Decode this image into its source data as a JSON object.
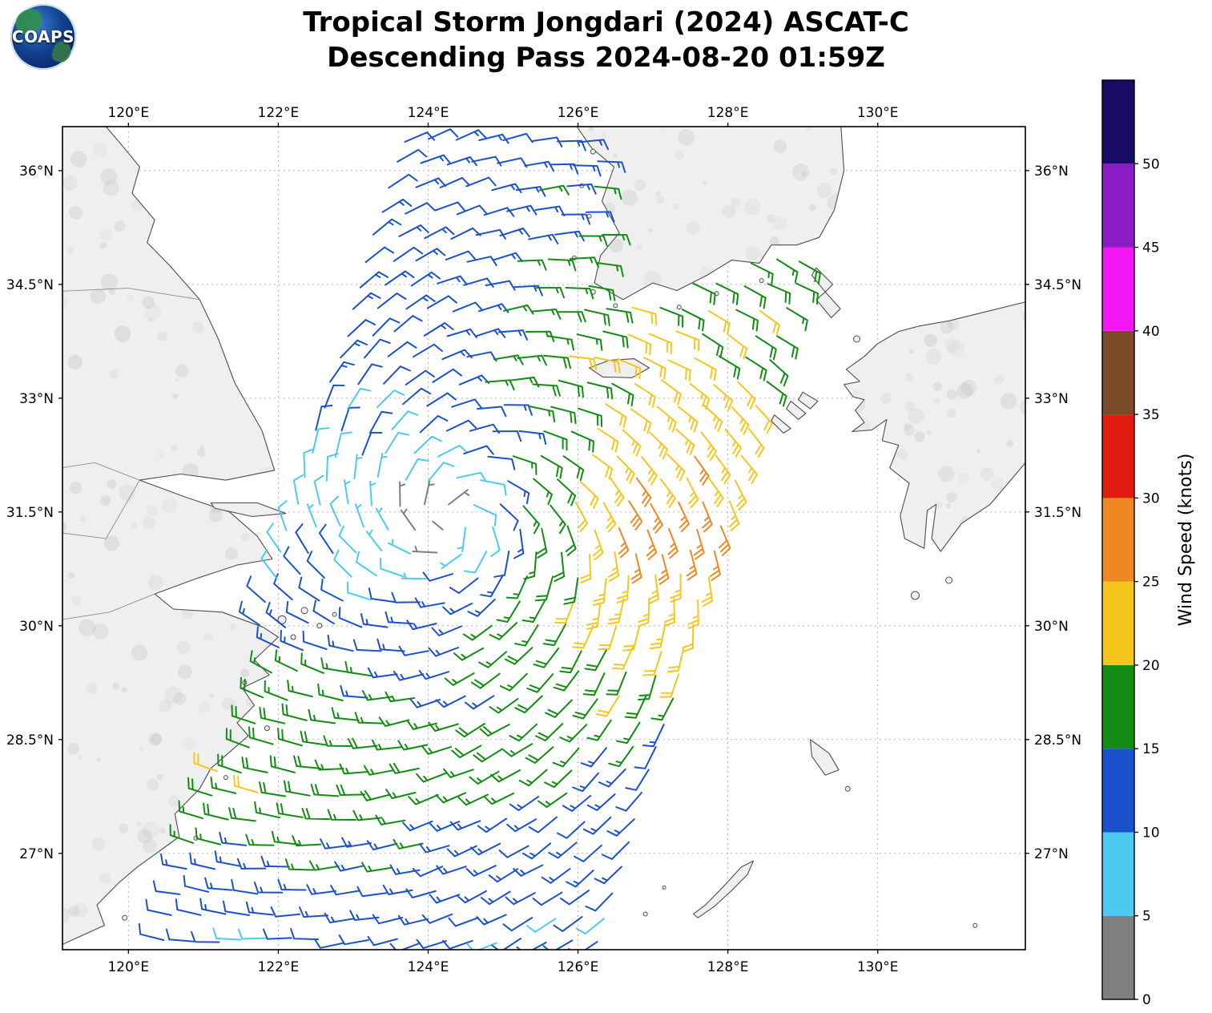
{
  "header": {
    "title_line1": "Tropical Storm Jongdari (2024) ASCAT-C",
    "title_line2": "Descending Pass 2024-08-20 01:59Z",
    "logo_text": "COAPS"
  },
  "chart_data": {
    "type": "wind_barb_map",
    "storm_name": "Jongdari",
    "year": "2024",
    "satellite": "ASCAT-C",
    "pass_type": "Descending",
    "pass_datetime_utc": "2024-08-20 01:59Z",
    "axes": {
      "lon_range": [
        119.12,
        131.97
      ],
      "lat_range": [
        25.73,
        36.58
      ],
      "lon_ticks": [
        {
          "value": 120,
          "label": "120°E"
        },
        {
          "value": 122,
          "label": "122°E"
        },
        {
          "value": 124,
          "label": "124°E"
        },
        {
          "value": 126,
          "label": "126°E"
        },
        {
          "value": 128,
          "label": "128°E"
        },
        {
          "value": 130,
          "label": "130°E"
        }
      ],
      "lat_ticks": [
        {
          "value": 36,
          "label": "36°N"
        },
        {
          "value": 34.5,
          "label": "34.5°N"
        },
        {
          "value": 33,
          "label": "33°N"
        },
        {
          "value": 31.5,
          "label": "31.5°N"
        },
        {
          "value": 30,
          "label": "30°N"
        },
        {
          "value": 28.5,
          "label": "28.5°N"
        },
        {
          "value": 27,
          "label": "27°N"
        }
      ],
      "grid": "dotted"
    },
    "colorbar": {
      "label": "Wind Speed (knots)",
      "tick_values": [
        0,
        5,
        10,
        15,
        20,
        25,
        30,
        35,
        40,
        45,
        50
      ],
      "segments": [
        {
          "min": 0,
          "max": 5,
          "color": "#7f7f7f"
        },
        {
          "min": 5,
          "max": 10,
          "color": "#4ccaf0"
        },
        {
          "min": 10,
          "max": 15,
          "color": "#1c51cd"
        },
        {
          "min": 15,
          "max": 20,
          "color": "#128c12"
        },
        {
          "min": 20,
          "max": 25,
          "color": "#f5c71c"
        },
        {
          "min": 25,
          "max": 30,
          "color": "#ef8722"
        },
        {
          "min": 30,
          "max": 35,
          "color": "#e01b10"
        },
        {
          "min": 35,
          "max": 40,
          "color": "#7b4a28"
        },
        {
          "min": 40,
          "max": 45,
          "color": "#f318f3"
        },
        {
          "min": 45,
          "max": 50,
          "color": "#8a1cc4"
        },
        {
          "min": 50,
          "max": 55,
          "color": "#170b63"
        }
      ]
    },
    "storm_center": {
      "lon": 124.35,
      "lat": 31.35
    },
    "swath": {
      "left_lon_at_26n": 120.55,
      "lon_shift_per_deg_lat": 0.3,
      "width_deg": 6.0
    },
    "barb_spacing_deg": {
      "lon": 0.34,
      "lat": 0.32
    },
    "circulation": "cyclonic-counterclockwise",
    "inflow_angle_deg": 20,
    "wind_field_polar": {
      "angles_deg": [
        0,
        45,
        90,
        135,
        180,
        225,
        270,
        315
      ],
      "radii_deg": [
        0,
        1,
        2,
        3,
        4,
        5,
        6
      ],
      "speeds_kt": [
        [
          2,
          18,
          28,
          27,
          22,
          18,
          15
        ],
        [
          2,
          14,
          20,
          22,
          19,
          17,
          15
        ],
        [
          2,
          11,
          13,
          12,
          12,
          12,
          12
        ],
        [
          2,
          9,
          11,
          12,
          12,
          12,
          12
        ],
        [
          2,
          7,
          9,
          12,
          16,
          14,
          12
        ],
        [
          2,
          9,
          12,
          18,
          22,
          16,
          12
        ],
        [
          2,
          13,
          15,
          17,
          15,
          12,
          10
        ],
        [
          2,
          16,
          20,
          19,
          12,
          11,
          10
        ]
      ]
    }
  },
  "map": {
    "land_fill": "#efefef",
    "coast_stroke": "#4d4d4d",
    "mask": [
      "china",
      "korea",
      "kyushu",
      "jeju",
      "chongming",
      "okinawa"
    ],
    "texture": {
      "china": 150,
      "korea": 50,
      "kyushu": 70
    },
    "polygons": {
      "china": [
        [
          118.9,
          36.7
        ],
        [
          119.7,
          36.58
        ],
        [
          119.9,
          36.35
        ],
        [
          120.15,
          36.05
        ],
        [
          120.05,
          35.7
        ],
        [
          120.35,
          35.35
        ],
        [
          120.25,
          35.05
        ],
        [
          120.55,
          34.75
        ],
        [
          120.95,
          34.3
        ],
        [
          121.2,
          33.78
        ],
        [
          121.42,
          33.2
        ],
        [
          121.78,
          32.58
        ],
        [
          121.95,
          32.05
        ],
        [
          121.3,
          31.92
        ],
        [
          120.7,
          32.0
        ],
        [
          120.15,
          31.92
        ],
        [
          120.75,
          31.7
        ],
        [
          121.35,
          31.5
        ],
        [
          121.72,
          31.18
        ],
        [
          121.92,
          30.88
        ],
        [
          121.45,
          30.8
        ],
        [
          120.9,
          30.62
        ],
        [
          120.35,
          30.42
        ],
        [
          120.6,
          30.22
        ],
        [
          121.25,
          30.18
        ],
        [
          121.8,
          29.98
        ],
        [
          122.0,
          29.85
        ],
        [
          121.68,
          29.55
        ],
        [
          121.88,
          29.35
        ],
        [
          121.52,
          29.18
        ],
        [
          121.68,
          28.95
        ],
        [
          121.45,
          28.72
        ],
        [
          121.6,
          28.55
        ],
        [
          121.1,
          28.12
        ],
        [
          120.95,
          27.85
        ],
        [
          120.62,
          27.52
        ],
        [
          120.68,
          27.22
        ],
        [
          120.12,
          26.82
        ],
        [
          119.88,
          26.62
        ],
        [
          119.58,
          26.32
        ],
        [
          119.68,
          26.05
        ],
        [
          119.3,
          25.88
        ],
        [
          118.9,
          25.7
        ]
      ],
      "korea": [
        [
          125.9,
          36.7
        ],
        [
          126.18,
          36.3
        ],
        [
          126.48,
          36.05
        ],
        [
          126.32,
          35.6
        ],
        [
          126.55,
          35.18
        ],
        [
          126.3,
          34.88
        ],
        [
          126.22,
          34.52
        ],
        [
          126.6,
          34.3
        ],
        [
          127.0,
          34.52
        ],
        [
          127.32,
          34.42
        ],
        [
          127.72,
          34.62
        ],
        [
          128.05,
          34.82
        ],
        [
          128.42,
          34.78
        ],
        [
          128.58,
          35.02
        ],
        [
          128.92,
          35.02
        ],
        [
          129.22,
          35.12
        ],
        [
          129.42,
          35.48
        ],
        [
          129.55,
          36.0
        ],
        [
          129.5,
          36.7
        ]
      ],
      "kyushu": [
        [
          132.1,
          34.3
        ],
        [
          130.95,
          34.02
        ],
        [
          130.55,
          33.95
        ],
        [
          130.28,
          33.88
        ],
        [
          130.0,
          33.72
        ],
        [
          129.82,
          33.55
        ],
        [
          129.58,
          33.38
        ],
        [
          129.76,
          33.22
        ],
        [
          129.55,
          33.18
        ],
        [
          129.67,
          33.02
        ],
        [
          129.82,
          32.98
        ],
        [
          129.7,
          32.84
        ],
        [
          129.82,
          32.68
        ],
        [
          129.66,
          32.56
        ],
        [
          129.92,
          32.58
        ],
        [
          130.12,
          32.72
        ],
        [
          130.06,
          32.44
        ],
        [
          130.28,
          32.38
        ],
        [
          130.16,
          32.08
        ],
        [
          130.42,
          31.88
        ],
        [
          130.3,
          31.45
        ],
        [
          130.36,
          31.15
        ],
        [
          130.62,
          31.02
        ],
        [
          130.66,
          31.52
        ],
        [
          130.78,
          31.6
        ],
        [
          130.72,
          31.15
        ],
        [
          130.84,
          30.98
        ],
        [
          131.12,
          31.35
        ],
        [
          131.5,
          31.6
        ],
        [
          132.1,
          32.3
        ]
      ],
      "jeju": [
        [
          126.15,
          33.4
        ],
        [
          126.42,
          33.5
        ],
        [
          126.75,
          33.52
        ],
        [
          126.95,
          33.4
        ],
        [
          126.72,
          33.27
        ],
        [
          126.33,
          33.28
        ]
      ],
      "tsushima_n": [
        [
          129.18,
          34.72
        ],
        [
          129.4,
          34.5
        ],
        [
          129.3,
          34.4
        ],
        [
          129.12,
          34.62
        ]
      ],
      "tsushima_s": [
        [
          129.3,
          34.4
        ],
        [
          129.5,
          34.18
        ],
        [
          129.38,
          34.06
        ],
        [
          129.18,
          34.3
        ]
      ],
      "goto_1": [
        [
          128.62,
          32.78
        ],
        [
          128.84,
          32.6
        ],
        [
          128.74,
          32.54
        ],
        [
          128.58,
          32.7
        ]
      ],
      "goto_2": [
        [
          128.84,
          32.96
        ],
        [
          129.04,
          32.8
        ],
        [
          128.94,
          32.72
        ],
        [
          128.78,
          32.86
        ]
      ],
      "goto_3": [
        [
          129.0,
          33.08
        ],
        [
          129.2,
          32.96
        ],
        [
          129.1,
          32.86
        ],
        [
          128.94,
          32.98
        ]
      ],
      "chongming": [
        [
          121.1,
          31.62
        ],
        [
          121.72,
          31.62
        ],
        [
          122.1,
          31.48
        ],
        [
          121.65,
          31.44
        ],
        [
          121.15,
          31.55
        ]
      ],
      "okinawa": [
        [
          127.6,
          26.15
        ],
        [
          127.82,
          26.3
        ],
        [
          128.04,
          26.5
        ],
        [
          128.26,
          26.72
        ],
        [
          128.34,
          26.9
        ],
        [
          128.18,
          26.82
        ],
        [
          127.94,
          26.56
        ],
        [
          127.7,
          26.32
        ],
        [
          127.54,
          26.2
        ]
      ],
      "amami": [
        [
          129.1,
          28.5
        ],
        [
          129.35,
          28.32
        ],
        [
          129.48,
          28.1
        ],
        [
          129.3,
          28.03
        ],
        [
          129.12,
          28.28
        ]
      ]
    },
    "lines": {
      "yangtze_river": [
        [
          120.15,
          31.92
        ],
        [
          119.55,
          32.15
        ],
        [
          118.9,
          32.05
        ]
      ],
      "qiantang_river": [
        [
          120.35,
          30.42
        ],
        [
          119.75,
          30.18
        ],
        [
          118.9,
          30.05
        ]
      ],
      "huai_river": [
        [
          120.95,
          34.3
        ],
        [
          120.0,
          34.45
        ],
        [
          118.9,
          34.4
        ]
      ],
      "province_border": [
        [
          118.9,
          31.25
        ],
        [
          119.7,
          31.15
        ],
        [
          120.15,
          31.92
        ]
      ]
    },
    "islets": [
      [
        122.05,
        30.08,
        5
      ],
      [
        122.35,
        30.2,
        4
      ],
      [
        122.55,
        30.0,
        3
      ],
      [
        122.2,
        29.85,
        3
      ],
      [
        122.75,
        30.15,
        2.5
      ],
      [
        121.85,
        28.65,
        3
      ],
      [
        121.3,
        28.0,
        2.5
      ],
      [
        120.9,
        27.2,
        2.5
      ],
      [
        119.95,
        26.15,
        3
      ],
      [
        121.55,
        29.25,
        2.5
      ],
      [
        126.2,
        36.25,
        3
      ],
      [
        126.05,
        35.8,
        2.5
      ],
      [
        126.15,
        35.4,
        2.5
      ],
      [
        125.95,
        34.85,
        2.5
      ],
      [
        126.2,
        34.4,
        3
      ],
      [
        126.5,
        34.22,
        2.5
      ],
      [
        127.35,
        34.2,
        2.5
      ],
      [
        127.85,
        34.38,
        2.5
      ],
      [
        128.45,
        34.55,
        2.5
      ],
      [
        129.72,
        33.78,
        4
      ],
      [
        130.5,
        30.4,
        5
      ],
      [
        130.95,
        30.6,
        4
      ],
      [
        129.6,
        27.85,
        3
      ],
      [
        126.9,
        26.2,
        2.5
      ],
      [
        127.15,
        26.55,
        2
      ],
      [
        131.3,
        26.05,
        2.5
      ]
    ]
  }
}
